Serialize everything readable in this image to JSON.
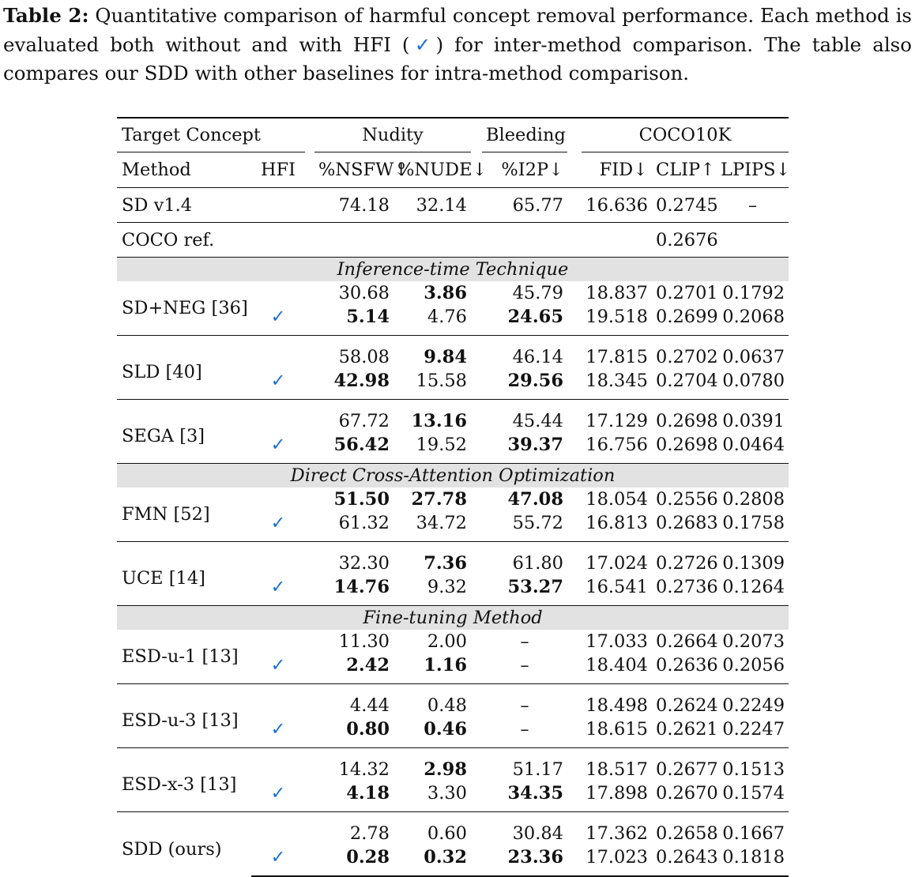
{
  "caption": {
    "label": "Table 2:",
    "text_before": " Quantitative comparison of harmful concept removal performance. Each method is evaluated both without and with HFI (",
    "check": "✓",
    "text_after": ") for inter-method comparison. The table also compares our SDD with other baselines for intra-method comparison."
  },
  "header": {
    "target_concept": "Target Concept",
    "nudity": "Nudity",
    "bleeding": "Bleeding",
    "coco10k": "COCO10K",
    "method": "Method",
    "hfi": "HFI",
    "nsfw": "%NSFW↓",
    "nude": "%NUDE↓",
    "i2p": "%I2P↓",
    "fid": "FID↓",
    "clip": "CLIP↑",
    "lpips": "LPIPS↓"
  },
  "sd": {
    "name": "SD v1.4",
    "nsfw": "74.18",
    "nude": "32.14",
    "i2p": "65.77",
    "fid": "16.636",
    "clip": "0.2745",
    "lpips": "–"
  },
  "coco": {
    "name": "COCO ref.",
    "clip": "0.2676"
  },
  "check_mark": "✓",
  "sections": [
    {
      "title": "Inference-time Technique",
      "methods": [
        {
          "name": "SD+NEG [36]",
          "without": {
            "nsfw": "30.68",
            "nude": "3.86",
            "i2p": "45.79",
            "fid": "18.837",
            "clip": "0.2701",
            "lpips": "0.1792"
          },
          "with": {
            "nsfw": "5.14",
            "nude": "4.76",
            "i2p": "24.65",
            "fid": "19.518",
            "clip": "0.2699",
            "lpips": "0.2068"
          }
        },
        {
          "name": "SLD [40]",
          "without": {
            "nsfw": "58.08",
            "nude": "9.84",
            "i2p": "46.14",
            "fid": "17.815",
            "clip": "0.2702",
            "lpips": "0.0637"
          },
          "with": {
            "nsfw": "42.98",
            "nude": "15.58",
            "i2p": "29.56",
            "fid": "18.345",
            "clip": "0.2704",
            "lpips": "0.0780"
          }
        },
        {
          "name": "SEGA [3]",
          "without": {
            "nsfw": "67.72",
            "nude": "13.16",
            "i2p": "45.44",
            "fid": "17.129",
            "clip": "0.2698",
            "lpips": "0.0391"
          },
          "with": {
            "nsfw": "56.42",
            "nude": "19.52",
            "i2p": "39.37",
            "fid": "16.756",
            "clip": "0.2698",
            "lpips": "0.0464"
          }
        }
      ]
    },
    {
      "title": "Direct Cross-Attention Optimization",
      "methods": [
        {
          "name": "FMN [52]",
          "without": {
            "nsfw": "51.50",
            "nude": "27.78",
            "i2p": "47.08",
            "fid": "18.054",
            "clip": "0.2556",
            "lpips": "0.2808"
          },
          "with": {
            "nsfw": "61.32",
            "nude": "34.72",
            "i2p": "55.72",
            "fid": "16.813",
            "clip": "0.2683",
            "lpips": "0.1758"
          }
        },
        {
          "name": "UCE [14]",
          "without": {
            "nsfw": "32.30",
            "nude": "7.36",
            "i2p": "61.80",
            "fid": "17.024",
            "clip": "0.2726",
            "lpips": "0.1309"
          },
          "with": {
            "nsfw": "14.76",
            "nude": "9.32",
            "i2p": "53.27",
            "fid": "16.541",
            "clip": "0.2736",
            "lpips": "0.1264"
          }
        }
      ]
    },
    {
      "title": "Fine-tuning Method",
      "methods": [
        {
          "name": "ESD-u-1 [13]",
          "without": {
            "nsfw": "11.30",
            "nude": "2.00",
            "i2p": "–",
            "fid": "17.033",
            "clip": "0.2664",
            "lpips": "0.2073"
          },
          "with": {
            "nsfw": "2.42",
            "nude": "1.16",
            "i2p": "–",
            "fid": "18.404",
            "clip": "0.2636",
            "lpips": "0.2056"
          }
        },
        {
          "name": "ESD-u-3 [13]",
          "without": {
            "nsfw": "4.44",
            "nude": "0.48",
            "i2p": "–",
            "fid": "18.498",
            "clip": "0.2624",
            "lpips": "0.2249"
          },
          "with": {
            "nsfw": "0.80",
            "nude": "0.46",
            "i2p": "–",
            "fid": "18.615",
            "clip": "0.2621",
            "lpips": "0.2247"
          }
        },
        {
          "name": "ESD-x-3 [13]",
          "without": {
            "nsfw": "14.32",
            "nude": "2.98",
            "i2p": "51.17",
            "fid": "18.517",
            "clip": "0.2677",
            "lpips": "0.1513"
          },
          "with": {
            "nsfw": "4.18",
            "nude": "3.30",
            "i2p": "34.35",
            "fid": "17.898",
            "clip": "0.2670",
            "lpips": "0.1574"
          }
        },
        {
          "name": "SDD (ours)",
          "without": {
            "nsfw": "2.78",
            "nude": "0.60",
            "i2p": "30.84",
            "fid": "17.362",
            "clip": "0.2658",
            "lpips": "0.1667"
          },
          "with": {
            "nsfw": "0.28",
            "nude": "0.32",
            "i2p": "23.36",
            "fid": "17.023",
            "clip": "0.2643",
            "lpips": "0.1818"
          }
        }
      ]
    }
  ]
}
